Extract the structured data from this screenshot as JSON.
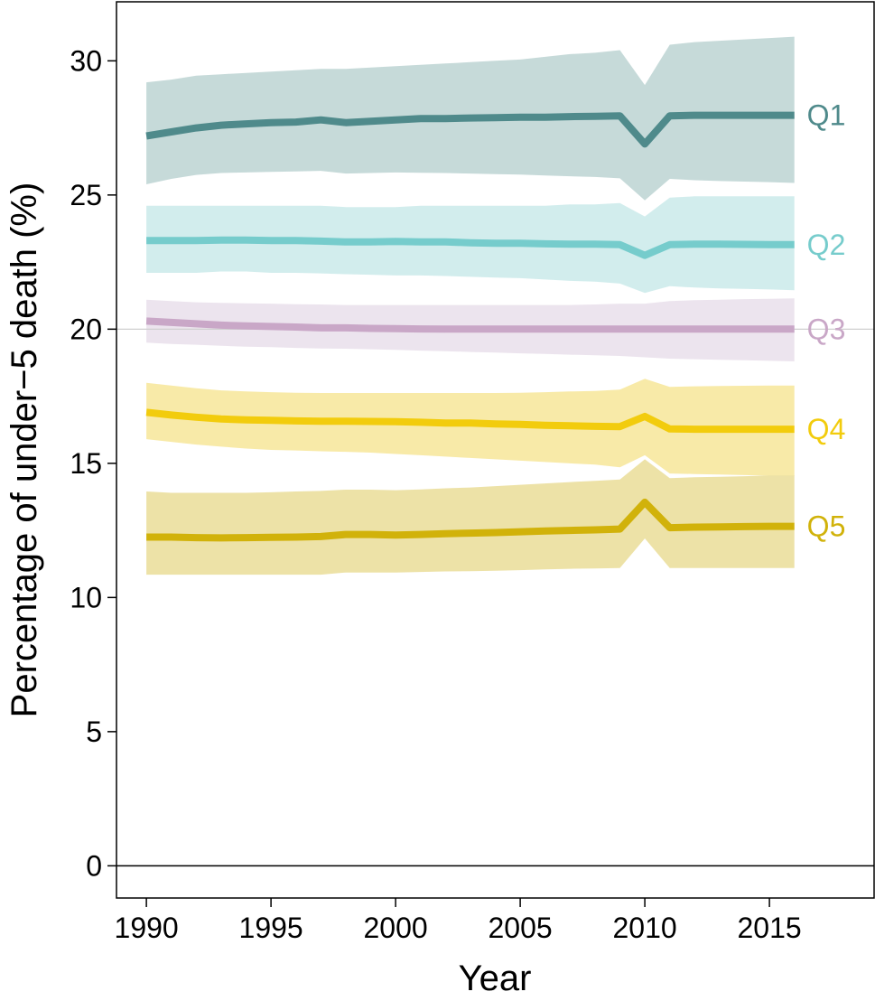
{
  "chart_data": {
    "type": "line",
    "xlabel": "Year",
    "ylabel": "Percentage of under−5 death (%)",
    "xlim": [
      1988.8,
      2019.2
    ],
    "ylim": [
      -1.2,
      32.2
    ],
    "x_ticks": [
      1990,
      1995,
      2000,
      2005,
      2010,
      2015
    ],
    "y_ticks": [
      0,
      5,
      10,
      15,
      20,
      25,
      30
    ],
    "reference_lines": [
      0,
      20
    ],
    "grid": false,
    "x": [
      1990,
      1991,
      1992,
      1993,
      1994,
      1995,
      1996,
      1997,
      1998,
      1999,
      2000,
      2001,
      2002,
      2003,
      2004,
      2005,
      2006,
      2007,
      2008,
      2009,
      2010,
      2011,
      2012,
      2013,
      2014,
      2015,
      2016
    ],
    "series": [
      {
        "name": "Q1",
        "color": "#4f8a8b",
        "band_color": "#c3d8d7",
        "values": [
          27.2,
          27.35,
          27.5,
          27.6,
          27.65,
          27.7,
          27.72,
          27.8,
          27.7,
          27.75,
          27.8,
          27.85,
          27.85,
          27.87,
          27.88,
          27.9,
          27.9,
          27.92,
          27.93,
          27.95,
          26.9,
          27.95,
          27.97,
          27.97,
          27.97,
          27.97,
          27.97
        ],
        "lower": [
          25.4,
          25.6,
          25.75,
          25.82,
          25.84,
          25.86,
          25.88,
          25.9,
          25.8,
          25.82,
          25.84,
          25.83,
          25.82,
          25.8,
          25.78,
          25.76,
          25.73,
          25.7,
          25.67,
          25.62,
          24.8,
          25.6,
          25.55,
          25.52,
          25.5,
          25.48,
          25.45
        ],
        "upper": [
          29.2,
          29.3,
          29.45,
          29.5,
          29.55,
          29.6,
          29.65,
          29.7,
          29.7,
          29.75,
          29.8,
          29.85,
          29.9,
          29.95,
          30.0,
          30.05,
          30.15,
          30.25,
          30.3,
          30.4,
          29.1,
          30.6,
          30.7,
          30.75,
          30.8,
          30.85,
          30.9
        ]
      },
      {
        "name": "Q2",
        "color": "#76cccc",
        "band_color": "#d0ecec",
        "values": [
          23.3,
          23.3,
          23.3,
          23.32,
          23.32,
          23.3,
          23.3,
          23.28,
          23.25,
          23.25,
          23.27,
          23.25,
          23.25,
          23.22,
          23.2,
          23.2,
          23.18,
          23.17,
          23.17,
          23.15,
          22.75,
          23.15,
          23.17,
          23.17,
          23.16,
          23.15,
          23.15
        ],
        "lower": [
          22.1,
          22.1,
          22.1,
          22.15,
          22.15,
          22.1,
          22.1,
          22.08,
          22.05,
          22.03,
          22.0,
          22.0,
          21.98,
          21.95,
          21.92,
          21.9,
          21.85,
          21.8,
          21.77,
          21.7,
          21.35,
          21.6,
          21.55,
          21.52,
          21.5,
          21.48,
          21.45
        ],
        "upper": [
          24.6,
          24.6,
          24.6,
          24.6,
          24.6,
          24.6,
          24.6,
          24.6,
          24.55,
          24.55,
          24.55,
          24.6,
          24.6,
          24.6,
          24.6,
          24.6,
          24.6,
          24.65,
          24.65,
          24.7,
          24.2,
          24.9,
          24.95,
          24.95,
          24.95,
          24.95,
          24.95
        ]
      },
      {
        "name": "Q3",
        "color": "#c9a7c7",
        "band_color": "#ebe3ed",
        "values": [
          20.3,
          20.25,
          20.2,
          20.15,
          20.12,
          20.1,
          20.08,
          20.05,
          20.05,
          20.03,
          20.02,
          20.01,
          20.0,
          20.0,
          20.0,
          20.0,
          20.0,
          20.0,
          20.0,
          20.0,
          20.0,
          20.0,
          20.0,
          20.0,
          20.0,
          20.0,
          20.0
        ],
        "lower": [
          19.5,
          19.45,
          19.42,
          19.38,
          19.35,
          19.33,
          19.3,
          19.28,
          19.27,
          19.25,
          19.23,
          19.2,
          19.18,
          19.15,
          19.13,
          19.1,
          19.08,
          19.05,
          19.03,
          19.0,
          18.95,
          18.9,
          18.88,
          18.86,
          18.84,
          18.82,
          18.8
        ],
        "upper": [
          21.1,
          21.05,
          21.0,
          20.98,
          20.96,
          20.95,
          20.93,
          20.92,
          20.9,
          20.9,
          20.9,
          20.9,
          20.9,
          20.9,
          20.9,
          20.9,
          20.9,
          20.9,
          20.92,
          20.95,
          20.95,
          21.05,
          21.08,
          21.1,
          21.12,
          21.13,
          21.15
        ]
      },
      {
        "name": "Q4",
        "color": "#f2cc0d",
        "band_color": "#f8e9a3",
        "values": [
          16.9,
          16.8,
          16.72,
          16.65,
          16.62,
          16.6,
          16.58,
          16.57,
          16.57,
          16.56,
          16.55,
          16.53,
          16.5,
          16.5,
          16.47,
          16.45,
          16.42,
          16.4,
          16.38,
          16.37,
          16.75,
          16.28,
          16.27,
          16.27,
          16.27,
          16.27,
          16.27
        ],
        "lower": [
          15.9,
          15.8,
          15.7,
          15.62,
          15.55,
          15.5,
          15.48,
          15.45,
          15.43,
          15.4,
          15.35,
          15.3,
          15.25,
          15.2,
          15.15,
          15.1,
          15.05,
          15.0,
          14.95,
          14.85,
          15.3,
          14.62,
          14.6,
          14.58,
          14.56,
          14.54,
          14.52
        ],
        "upper": [
          18.0,
          17.9,
          17.8,
          17.72,
          17.68,
          17.65,
          17.63,
          17.62,
          17.62,
          17.62,
          17.62,
          17.62,
          17.62,
          17.62,
          17.62,
          17.63,
          17.65,
          17.68,
          17.7,
          17.75,
          18.15,
          17.85,
          17.87,
          17.88,
          17.89,
          17.9,
          17.9
        ]
      },
      {
        "name": "Q5",
        "color": "#d1b20a",
        "band_color": "#ece0a2",
        "values": [
          12.25,
          12.25,
          12.23,
          12.22,
          12.23,
          12.24,
          12.25,
          12.27,
          12.35,
          12.35,
          12.33,
          12.35,
          12.38,
          12.4,
          12.42,
          12.45,
          12.48,
          12.5,
          12.52,
          12.55,
          13.55,
          12.6,
          12.62,
          12.63,
          12.64,
          12.65,
          12.65
        ],
        "lower": [
          10.85,
          10.85,
          10.85,
          10.85,
          10.85,
          10.85,
          10.85,
          10.85,
          10.93,
          10.93,
          10.93,
          10.95,
          10.97,
          10.98,
          11.0,
          11.02,
          11.05,
          11.07,
          11.08,
          11.1,
          12.2,
          11.1,
          11.1,
          11.1,
          11.1,
          11.1,
          11.1
        ],
        "upper": [
          13.95,
          13.9,
          13.9,
          13.9,
          13.9,
          13.92,
          13.95,
          13.97,
          14.02,
          14.02,
          14.0,
          14.03,
          14.07,
          14.1,
          14.15,
          14.2,
          14.25,
          14.3,
          14.35,
          14.4,
          15.15,
          14.45,
          14.48,
          14.5,
          14.52,
          14.55,
          14.55
        ]
      }
    ]
  }
}
